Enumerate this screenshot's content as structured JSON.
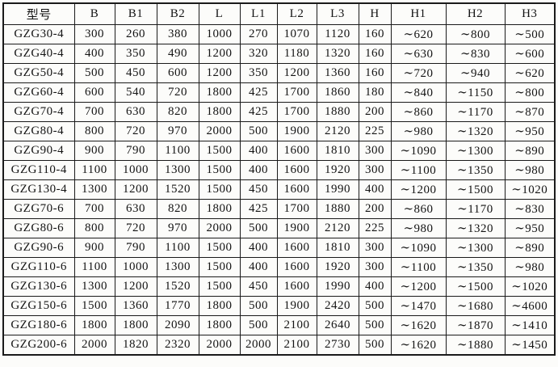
{
  "page": {
    "background_color": "#fcfcfa",
    "border_color": "#1a1a1a",
    "text_color": "#141414"
  },
  "table": {
    "columns": [
      "型号",
      "B",
      "B1",
      "B2",
      "L",
      "L1",
      "L2",
      "L3",
      "H",
      "H1",
      "H2",
      "H3"
    ],
    "rows": [
      [
        "GZG30-4",
        "300",
        "260",
        "380",
        "1000",
        "270",
        "1070",
        "1120",
        "160",
        "∼620",
        "∼800",
        "∼500"
      ],
      [
        "GZG40-4",
        "400",
        "350",
        "490",
        "1200",
        "320",
        "1180",
        "1320",
        "160",
        "∼630",
        "∼830",
        "∼600"
      ],
      [
        "GZG50-4",
        "500",
        "450",
        "600",
        "1200",
        "350",
        "1200",
        "1360",
        "160",
        "∼720",
        "∼940",
        "∼620"
      ],
      [
        "GZG60-4",
        "600",
        "540",
        "720",
        "1800",
        "425",
        "1700",
        "1860",
        "180",
        "∼840",
        "∼1150",
        "∼800"
      ],
      [
        "GZG70-4",
        "700",
        "630",
        "820",
        "1800",
        "425",
        "1700",
        "1880",
        "200",
        "∼860",
        "∼1170",
        "∼870"
      ],
      [
        "GZG80-4",
        "800",
        "720",
        "970",
        "2000",
        "500",
        "1900",
        "2120",
        "225",
        "∼980",
        "∼1320",
        "∼950"
      ],
      [
        "GZG90-4",
        "900",
        "790",
        "1100",
        "1500",
        "400",
        "1600",
        "1810",
        "300",
        "∼1090",
        "∼1300",
        "∼890"
      ],
      [
        "GZG110-4",
        "1100",
        "1000",
        "1300",
        "1500",
        "400",
        "1600",
        "1920",
        "300",
        "∼1100",
        "∼1350",
        "∼980"
      ],
      [
        "GZG130-4",
        "1300",
        "1200",
        "1520",
        "1500",
        "450",
        "1600",
        "1990",
        "400",
        "∼1200",
        "∼1500",
        "∼1020"
      ],
      [
        "GZG70-6",
        "700",
        "630",
        "820",
        "1800",
        "425",
        "1700",
        "1880",
        "200",
        "∼860",
        "∼1170",
        "∼830"
      ],
      [
        "GZG80-6",
        "800",
        "720",
        "970",
        "2000",
        "500",
        "1900",
        "2120",
        "225",
        "∼980",
        "∼1320",
        "∼950"
      ],
      [
        "GZG90-6",
        "900",
        "790",
        "1100",
        "1500",
        "400",
        "1600",
        "1810",
        "300",
        "∼1090",
        "∼1300",
        "∼890"
      ],
      [
        "GZG110-6",
        "1100",
        "1000",
        "1300",
        "1500",
        "400",
        "1600",
        "1920",
        "300",
        "∼1100",
        "∼1350",
        "∼980"
      ],
      [
        "GZG130-6",
        "1300",
        "1200",
        "1520",
        "1500",
        "450",
        "1600",
        "1990",
        "400",
        "∼1200",
        "∼1500",
        "∼1020"
      ],
      [
        "GZG150-6",
        "1500",
        "1360",
        "1770",
        "1800",
        "500",
        "1900",
        "2420",
        "500",
        "∼1470",
        "∼1680",
        "∼4600"
      ],
      [
        "GZG180-6",
        "1800",
        "1800",
        "2090",
        "1800",
        "500",
        "2100",
        "2640",
        "500",
        "∼1620",
        "∼1870",
        "∼1410"
      ],
      [
        "GZG200-6",
        "2000",
        "1820",
        "2320",
        "2000",
        "2000",
        "2100",
        "2730",
        "500",
        "∼1620",
        "∼1880",
        "∼1450"
      ]
    ]
  }
}
